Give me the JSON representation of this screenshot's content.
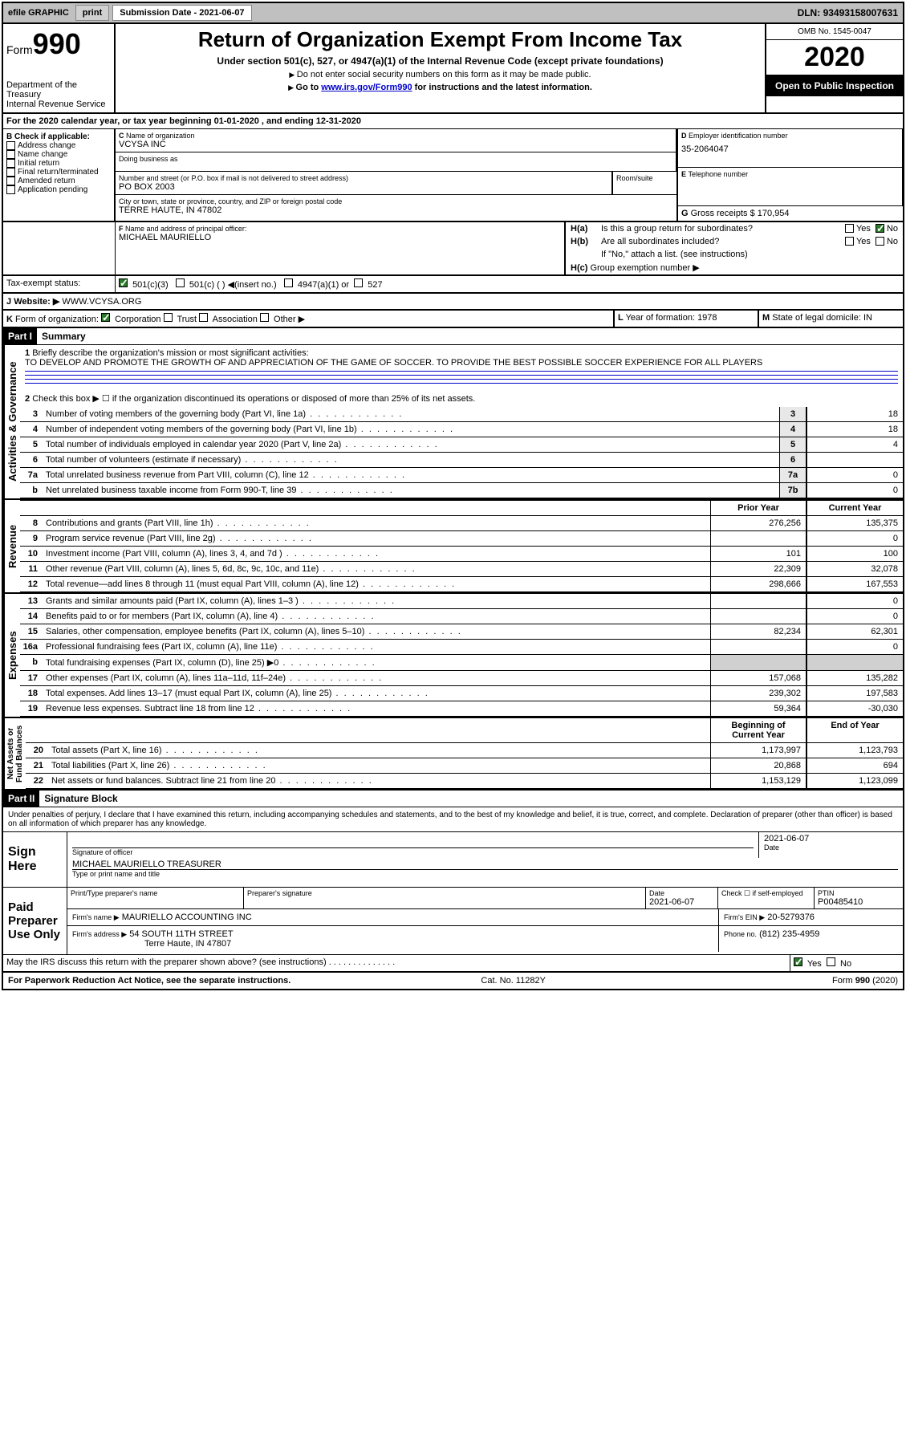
{
  "topbar": {
    "efile": "efile GRAPHIC",
    "print": "print",
    "subdate_label": "Submission Date - ",
    "subdate": "2021-06-07",
    "dln_label": "DLN: ",
    "dln": "93493158007631"
  },
  "header": {
    "form_label": "Form",
    "form_num": "990",
    "dept": "Department of the Treasury\nInternal Revenue Service",
    "title": "Return of Organization Exempt From Income Tax",
    "subtitle": "Under section 501(c), 527, or 4947(a)(1) of the Internal Revenue Code (except private foundations)",
    "sub1": "Do not enter social security numbers on this form as it may be made public.",
    "sub2_pre": "Go to ",
    "sub2_link": "www.irs.gov/Form990",
    "sub2_post": " for instructions and the latest information.",
    "omb": "OMB No. 1545-0047",
    "year": "2020",
    "inspection": "Open to Public Inspection"
  },
  "line_a": "For the 2020 calendar year, or tax year beginning 01-01-2020    , and ending 12-31-2020",
  "section_b": {
    "label": "Check if applicable:",
    "items": [
      "Address change",
      "Name change",
      "Initial return",
      "Final return/terminated",
      "Amended return",
      "Application pending"
    ]
  },
  "section_c": {
    "name_label": "Name of organization",
    "name": "VCYSA INC",
    "dba_label": "Doing business as",
    "addr_label": "Number and street (or P.O. box if mail is not delivered to street address)",
    "room_label": "Room/suite",
    "addr": "PO BOX 2003",
    "city_label": "City or town, state or province, country, and ZIP or foreign postal code",
    "city": "TERRE HAUTE, IN  47802"
  },
  "section_d": {
    "label": "Employer identification number",
    "val": "35-2064047"
  },
  "section_e": {
    "label": "Telephone number",
    "val": ""
  },
  "section_g": {
    "label": "Gross receipts $",
    "val": "170,954"
  },
  "section_f": {
    "label": "Name and address of principal officer:",
    "val": "MICHAEL MAURIELLO"
  },
  "section_h": {
    "a_label": "Is this a group return for subordinates?",
    "b_label": "Are all subordinates included?",
    "b_note": "If \"No,\" attach a list. (see instructions)",
    "c_label": "Group exemption number"
  },
  "taxexempt": {
    "label": "Tax-exempt status:",
    "o1": "501(c)(3)",
    "o2": "501(c) (  )",
    "o2b": "(insert no.)",
    "o3": "4947(a)(1) or",
    "o4": "527"
  },
  "website": {
    "label": "Website:",
    "val": "WWW.VCYSA.ORG"
  },
  "section_k": {
    "label": "Form of organization:",
    "o1": "Corporation",
    "o2": "Trust",
    "o3": "Association",
    "o4": "Other"
  },
  "section_l": {
    "label": "Year of formation:",
    "val": "1978"
  },
  "section_m": {
    "label": "State of legal domicile:",
    "val": "IN"
  },
  "part1": {
    "hdr": "Part I",
    "title": "Summary",
    "q1_label": "Briefly describe the organization's mission or most significant activities:",
    "q1_text": "TO DEVELOP AND PROMOTE THE GROWTH OF AND APPRECIATION OF THE GAME OF SOCCER. TO PROVIDE THE BEST POSSIBLE SOCCER EXPERIENCE FOR ALL PLAYERS",
    "q2": "Check this box ▶ ☐  if the organization discontinued its operations or disposed of more than 25% of its net assets.",
    "rows_ag": [
      {
        "n": "3",
        "d": "Number of voting members of the governing body (Part VI, line 1a)",
        "box": "3",
        "v": "18"
      },
      {
        "n": "4",
        "d": "Number of independent voting members of the governing body (Part VI, line 1b)",
        "box": "4",
        "v": "18"
      },
      {
        "n": "5",
        "d": "Total number of individuals employed in calendar year 2020 (Part V, line 2a)",
        "box": "5",
        "v": "4"
      },
      {
        "n": "6",
        "d": "Total number of volunteers (estimate if necessary)",
        "box": "6",
        "v": ""
      },
      {
        "n": "7a",
        "d": "Total unrelated business revenue from Part VIII, column (C), line 12",
        "box": "7a",
        "v": "0"
      },
      {
        "n": "b",
        "d": "Net unrelated business taxable income from Form 990-T, line 39",
        "box": "7b",
        "v": "0"
      }
    ],
    "colhdr_prior": "Prior Year",
    "colhdr_curr": "Current Year",
    "rows_rev": [
      {
        "n": "8",
        "d": "Contributions and grants (Part VIII, line 1h)",
        "p": "276,256",
        "c": "135,375"
      },
      {
        "n": "9",
        "d": "Program service revenue (Part VIII, line 2g)",
        "p": "",
        "c": "0"
      },
      {
        "n": "10",
        "d": "Investment income (Part VIII, column (A), lines 3, 4, and 7d )",
        "p": "101",
        "c": "100"
      },
      {
        "n": "11",
        "d": "Other revenue (Part VIII, column (A), lines 5, 6d, 8c, 9c, 10c, and 11e)",
        "p": "22,309",
        "c": "32,078"
      },
      {
        "n": "12",
        "d": "Total revenue—add lines 8 through 11 (must equal Part VIII, column (A), line 12)",
        "p": "298,666",
        "c": "167,553"
      }
    ],
    "rows_exp": [
      {
        "n": "13",
        "d": "Grants and similar amounts paid (Part IX, column (A), lines 1–3 )",
        "p": "",
        "c": "0"
      },
      {
        "n": "14",
        "d": "Benefits paid to or for members (Part IX, column (A), line 4)",
        "p": "",
        "c": "0"
      },
      {
        "n": "15",
        "d": "Salaries, other compensation, employee benefits (Part IX, column (A), lines 5–10)",
        "p": "82,234",
        "c": "62,301"
      },
      {
        "n": "16a",
        "d": "Professional fundraising fees (Part IX, column (A), line 11e)",
        "p": "",
        "c": "0"
      },
      {
        "n": "b",
        "d": "Total fundraising expenses (Part IX, column (D), line 25) ▶0",
        "p": "shade",
        "c": "shade"
      },
      {
        "n": "17",
        "d": "Other expenses (Part IX, column (A), lines 11a–11d, 11f–24e)",
        "p": "157,068",
        "c": "135,282"
      },
      {
        "n": "18",
        "d": "Total expenses. Add lines 13–17 (must equal Part IX, column (A), line 25)",
        "p": "239,302",
        "c": "197,583"
      },
      {
        "n": "19",
        "d": "Revenue less expenses. Subtract line 18 from line 12",
        "p": "59,364",
        "c": "-30,030"
      }
    ],
    "colhdr_begin": "Beginning of Current Year",
    "colhdr_end": "End of Year",
    "rows_net": [
      {
        "n": "20",
        "d": "Total assets (Part X, line 16)",
        "p": "1,173,997",
        "c": "1,123,793"
      },
      {
        "n": "21",
        "d": "Total liabilities (Part X, line 26)",
        "p": "20,868",
        "c": "694"
      },
      {
        "n": "22",
        "d": "Net assets or fund balances. Subtract line 21 from line 20",
        "p": "1,153,129",
        "c": "1,123,099"
      }
    ],
    "sidebars": {
      "ag": "Activities & Governance",
      "rev": "Revenue",
      "exp": "Expenses",
      "net": "Net Assets or\nFund Balances"
    }
  },
  "part2": {
    "hdr": "Part II",
    "title": "Signature Block",
    "decl": "Under penalties of perjury, I declare that I have examined this return, including accompanying schedules and statements, and to the best of my knowledge and belief, it is true, correct, and complete. Declaration of preparer (other than officer) is based on all information of which preparer has any knowledge.",
    "sign_here": "Sign Here",
    "sig_officer": "Signature of officer",
    "date_label": "Date",
    "date": "2021-06-07",
    "name_title": "MICHAEL MAURIELLO  TREASURER",
    "type_label": "Type or print name and title",
    "paid": "Paid Preparer Use Only",
    "prep_name_label": "Print/Type preparer's name",
    "prep_sig_label": "Preparer's signature",
    "prep_date": "2021-06-07",
    "check_self": "Check ☐ if self-employed",
    "ptin_label": "PTIN",
    "ptin": "P00485410",
    "firm_name_label": "Firm's name   ▶",
    "firm_name": "MAURIELLO ACCOUNTING INC",
    "firm_ein_label": "Firm's EIN ▶",
    "firm_ein": "20-5279376",
    "firm_addr_label": "Firm's address ▶",
    "firm_addr1": "54 SOUTH 11TH STREET",
    "firm_addr2": "Terre Haute, IN  47807",
    "phone_label": "Phone no.",
    "phone": "(812) 235-4959",
    "discuss": "May the IRS discuss this return with the preparer shown above? (see instructions)"
  },
  "footer": {
    "left": "For Paperwork Reduction Act Notice, see the separate instructions.",
    "mid": "Cat. No. 11282Y",
    "right": "Form 990 (2020)"
  },
  "yn": {
    "yes": "Yes",
    "no": "No"
  }
}
